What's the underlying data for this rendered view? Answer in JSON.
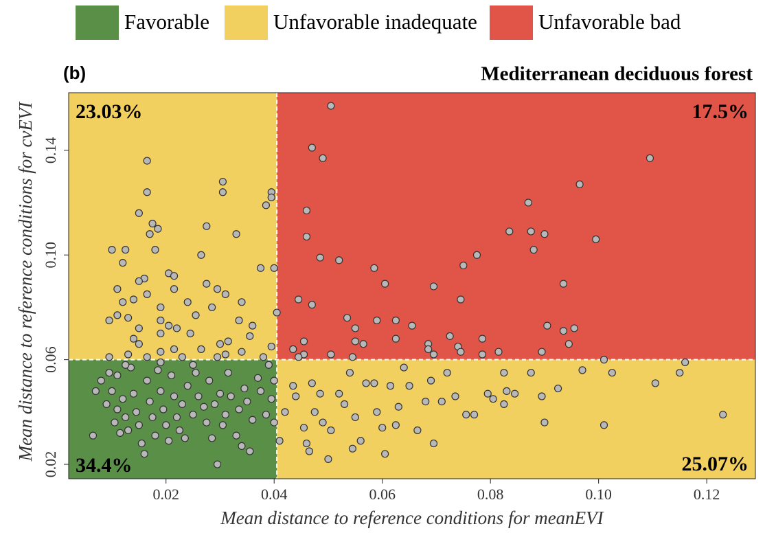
{
  "chart_data": {
    "type": "scatter",
    "panel_label": "(b)",
    "title": "Mediterranean deciduous forest",
    "x_label": "Mean distance to reference conditions for meanEVI",
    "y_label": "Mean distance to reference conditions for cvEVI",
    "legend": [
      {
        "name": "Favorable",
        "color": "#5a8f48"
      },
      {
        "name": "Unfavorable inadequate",
        "color": "#f2d060"
      },
      {
        "name": "Unfavorable bad",
        "color": "#e05548"
      }
    ],
    "x_threshold": 0.0405,
    "y_threshold": 0.06,
    "quadrant_shares": {
      "values": [
        23.03,
        17.5,
        34.4,
        25.07
      ],
      "value_labels": [
        "23.03%",
        "17.5%",
        "34.4%",
        "25.07%"
      ]
    },
    "xlim": [
      0.002,
      0.129
    ],
    "ylim": [
      0.0145,
      0.162
    ],
    "xticks": [
      0.02,
      0.04,
      0.06,
      0.08,
      {
        "value": 0.1,
        "label": "0.10"
      },
      0.12
    ],
    "yticks": [
      0.02,
      0.06,
      {
        "value": 0.1,
        "label": "0.10"
      },
      0.14
    ],
    "point_color": "#b8b8b8",
    "x": [
      0.0165,
      0.0165,
      0.015,
      0.0175,
      0.0185,
      0.017,
      0.0305,
      0.0305,
      0.0395,
      0.0395,
      0.0385,
      0.0275,
      0.033,
      0.01,
      0.0125,
      0.018,
      0.0265,
      0.012,
      0.0375,
      0.04,
      0.0205,
      0.0215,
      0.016,
      0.015,
      0.0275,
      0.0295,
      0.011,
      0.0215,
      0.0165,
      0.031,
      0.014,
      0.012,
      0.024,
      0.034,
      0.019,
      0.0285,
      0.0405,
      0.0255,
      0.011,
      0.013,
      0.0095,
      0.019,
      0.0335,
      0.036,
      0.0205,
      0.022,
      0.015,
      0.0245,
      0.019,
      0.0355,
      0.014,
      0.0315,
      0.015,
      0.03,
      0.0395,
      0.0215,
      0.0265,
      0.019,
      0.034,
      0.013,
      0.031,
      0.0295,
      0.0095,
      0.0165,
      0.023,
      0.038,
      0.0505,
      0.047,
      0.049,
      0.1095,
      0.0965,
      0.087,
      0.046,
      0.0835,
      0.0875,
      0.09,
      0.046,
      0.0995,
      0.088,
      0.0775,
      0.0485,
      0.052,
      0.075,
      0.0585,
      0.0605,
      0.0695,
      0.0935,
      0.0445,
      0.0745,
      0.047,
      0.0535,
      0.059,
      0.0625,
      0.0655,
      0.0905,
      0.0955,
      0.0935,
      0.055,
      0.0725,
      0.0785,
      0.0625,
      0.0455,
      0.055,
      0.0565,
      0.0685,
      0.0945,
      0.074,
      0.0435,
      0.0685,
      0.0745,
      0.0895,
      0.0505,
      0.0455,
      0.0785,
      0.0545,
      0.0445,
      0.0695,
      0.0815,
      0.0065,
      0.007,
      0.008,
      0.009,
      0.0095,
      0.01,
      0.0105,
      0.011,
      0.0115,
      0.011,
      0.012,
      0.0125,
      0.013,
      0.0135,
      0.014,
      0.0145,
      0.015,
      0.0155,
      0.016,
      0.0165,
      0.017,
      0.0175,
      0.018,
      0.0185,
      0.019,
      0.0195,
      0.02,
      0.0205,
      0.021,
      0.0215,
      0.022,
      0.0225,
      0.023,
      0.0235,
      0.024,
      0.025,
      0.0255,
      0.026,
      0.027,
      0.0275,
      0.028,
      0.0285,
      0.029,
      0.0295,
      0.03,
      0.0305,
      0.031,
      0.0315,
      0.032,
      0.033,
      0.0335,
      0.034,
      0.0345,
      0.035,
      0.0355,
      0.036,
      0.037,
      0.0375,
      0.0385,
      0.039,
      0.0395,
      0.04,
      0.04,
      0.0125,
      0.019,
      0.025,
      0.041,
      0.042,
      0.0435,
      0.044,
      0.0455,
      0.046,
      0.0465,
      0.047,
      0.0475,
      0.0485,
      0.049,
      0.05,
      0.0505,
      0.052,
      0.053,
      0.054,
      0.0545,
      0.055,
      0.056,
      0.057,
      0.0585,
      0.059,
      0.06,
      0.0605,
      0.0615,
      0.0625,
      0.063,
      0.064,
      0.065,
      0.0665,
      0.068,
      0.069,
      0.0695,
      0.071,
      0.072,
      0.0735,
      0.0755,
      0.077,
      0.0795,
      0.0805,
      0.0825,
      0.083,
      0.0825,
      0.0845,
      0.0875,
      0.0895,
      0.09,
      0.0925,
      0.097,
      0.101,
      0.101,
      0.1025,
      0.1105,
      0.115,
      0.116,
      0.123
    ],
    "values": [
      0.136,
      0.124,
      0.116,
      0.112,
      0.11,
      0.108,
      0.128,
      0.124,
      0.124,
      0.122,
      0.119,
      0.111,
      0.108,
      0.102,
      0.102,
      0.102,
      0.1,
      0.097,
      0.095,
      0.095,
      0.093,
      0.092,
      0.091,
      0.09,
      0.089,
      0.087,
      0.087,
      0.087,
      0.085,
      0.085,
      0.083,
      0.082,
      0.082,
      0.082,
      0.08,
      0.08,
      0.078,
      0.077,
      0.077,
      0.076,
      0.075,
      0.075,
      0.075,
      0.073,
      0.073,
      0.072,
      0.072,
      0.07,
      0.07,
      0.069,
      0.068,
      0.067,
      0.066,
      0.066,
      0.065,
      0.064,
      0.064,
      0.063,
      0.063,
      0.062,
      0.062,
      0.061,
      0.061,
      0.061,
      0.061,
      0.061,
      0.157,
      0.141,
      0.137,
      0.137,
      0.127,
      0.12,
      0.117,
      0.109,
      0.109,
      0.108,
      0.107,
      0.106,
      0.102,
      0.1,
      0.099,
      0.098,
      0.096,
      0.095,
      0.089,
      0.088,
      0.089,
      0.083,
      0.083,
      0.081,
      0.076,
      0.075,
      0.075,
      0.073,
      0.073,
      0.072,
      0.071,
      0.072,
      0.069,
      0.068,
      0.068,
      0.067,
      0.067,
      0.066,
      0.066,
      0.066,
      0.065,
      0.064,
      0.064,
      0.063,
      0.063,
      0.062,
      0.062,
      0.062,
      0.061,
      0.061,
      0.062,
      0.063,
      0.031,
      0.048,
      0.052,
      0.043,
      0.055,
      0.048,
      0.036,
      0.041,
      0.032,
      0.054,
      0.045,
      0.038,
      0.033,
      0.057,
      0.047,
      0.04,
      0.035,
      0.028,
      0.024,
      0.052,
      0.044,
      0.038,
      0.031,
      0.056,
      0.048,
      0.041,
      0.035,
      0.029,
      0.054,
      0.046,
      0.038,
      0.033,
      0.043,
      0.03,
      0.05,
      0.039,
      0.055,
      0.046,
      0.042,
      0.036,
      0.052,
      0.03,
      0.043,
      0.02,
      0.047,
      0.035,
      0.039,
      0.055,
      0.046,
      0.031,
      0.041,
      0.027,
      0.049,
      0.044,
      0.025,
      0.037,
      0.053,
      0.048,
      0.039,
      0.058,
      0.045,
      0.052,
      0.036,
      0.058,
      0.059,
      0.058,
      0.029,
      0.04,
      0.05,
      0.046,
      0.034,
      0.028,
      0.025,
      0.051,
      0.04,
      0.047,
      0.036,
      0.022,
      0.033,
      0.047,
      0.043,
      0.055,
      0.026,
      0.038,
      0.029,
      0.051,
      0.051,
      0.04,
      0.034,
      0.024,
      0.05,
      0.035,
      0.042,
      0.057,
      0.05,
      0.033,
      0.044,
      0.052,
      0.028,
      0.044,
      0.055,
      0.046,
      0.039,
      0.039,
      0.047,
      0.045,
      0.043,
      0.048,
      0.055,
      0.047,
      0.055,
      0.046,
      0.036,
      0.049,
      0.056,
      0.035,
      0.06,
      0.055,
      0.051,
      0.055,
      0.059,
      0.039
    ]
  }
}
